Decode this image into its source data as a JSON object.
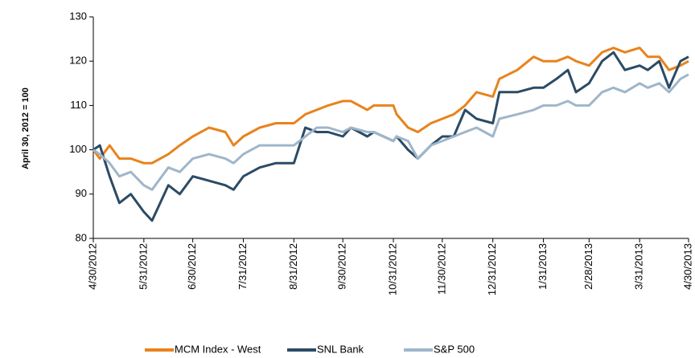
{
  "chart_data": {
    "type": "line",
    "y_label": "April 30, 2012 = 100",
    "x": [
      "4/30/2012",
      "5/4/2012",
      "5/10/2012",
      "5/16/2012",
      "5/23/2012",
      "5/31/2012",
      "6/5/2012",
      "6/15/2012",
      "6/22/2012",
      "6/30/2012",
      "7/10/2012",
      "7/20/2012",
      "7/25/2012",
      "7/31/2012",
      "8/10/2012",
      "8/20/2012",
      "8/31/2012",
      "9/7/2012",
      "9/14/2012",
      "9/21/2012",
      "9/30/2012",
      "10/5/2012",
      "10/15/2012",
      "10/19/2012",
      "10/31/2012",
      "11/2/2012",
      "11/9/2012",
      "11/15/2012",
      "11/23/2012",
      "11/30/2012",
      "12/7/2012",
      "12/14/2012",
      "12/21/2012",
      "12/31/2012",
      "1/4/2013",
      "1/15/2013",
      "1/25/2013",
      "1/31/2013",
      "2/8/2013",
      "2/15/2013",
      "2/20/2013",
      "2/28/2013",
      "3/8/2013",
      "3/15/2013",
      "3/22/2013",
      "3/31/2013",
      "4/5/2013",
      "4/12/2013",
      "4/18/2013",
      "4/25/2013",
      "4/30/2013"
    ],
    "series": [
      {
        "name": "MCM Index - West",
        "color": "#e8831c",
        "values": [
          100,
          98,
          101,
          98,
          98,
          97,
          97,
          99,
          101,
          103,
          105,
          104,
          101,
          103,
          105,
          106,
          106,
          108,
          109,
          110,
          111,
          111,
          109,
          110,
          110,
          108,
          105,
          104,
          106,
          107,
          108,
          110,
          113,
          112,
          116,
          118,
          121,
          120,
          120,
          121,
          120,
          119,
          122,
          123,
          122,
          123,
          121,
          121,
          118,
          119,
          120
        ]
      },
      {
        "name": "SNL Bank",
        "color": "#2b4b66",
        "values": [
          100,
          101,
          94,
          88,
          90,
          86,
          84,
          92,
          90,
          94,
          93,
          92,
          91,
          94,
          96,
          97,
          97,
          105,
          104,
          104,
          103,
          105,
          103,
          104,
          102,
          103,
          100,
          98,
          101,
          103,
          103,
          109,
          107,
          106,
          113,
          113,
          114,
          114,
          116,
          118,
          113,
          115,
          120,
          122,
          118,
          119,
          118,
          120,
          114,
          120,
          121
        ]
      },
      {
        "name": "S&P 500",
        "color": "#9fb6ca",
        "values": [
          100,
          99,
          97,
          94,
          95,
          92,
          91,
          96,
          95,
          98,
          99,
          98,
          97,
          99,
          101,
          101,
          101,
          103,
          105,
          105,
          104,
          105,
          104,
          104,
          102,
          103,
          102,
          98,
          101,
          102,
          103,
          104,
          105,
          103,
          107,
          108,
          109,
          110,
          110,
          111,
          110,
          110,
          113,
          114,
          113,
          115,
          114,
          115,
          113,
          116,
          117
        ]
      }
    ],
    "xticks": [
      "4/30/2012",
      "5/31/2012",
      "6/30/2012",
      "7/31/2012",
      "8/31/2012",
      "9/30/2012",
      "10/31/2012",
      "11/30/2012",
      "12/31/2012",
      "1/31/2013",
      "2/28/2013",
      "3/31/2013",
      "4/30/2013"
    ],
    "xlim": [
      "4/30/2012",
      "4/30/2013"
    ],
    "ylim": [
      80,
      130
    ],
    "yticks": [
      80,
      90,
      100,
      110,
      120,
      130
    ]
  }
}
